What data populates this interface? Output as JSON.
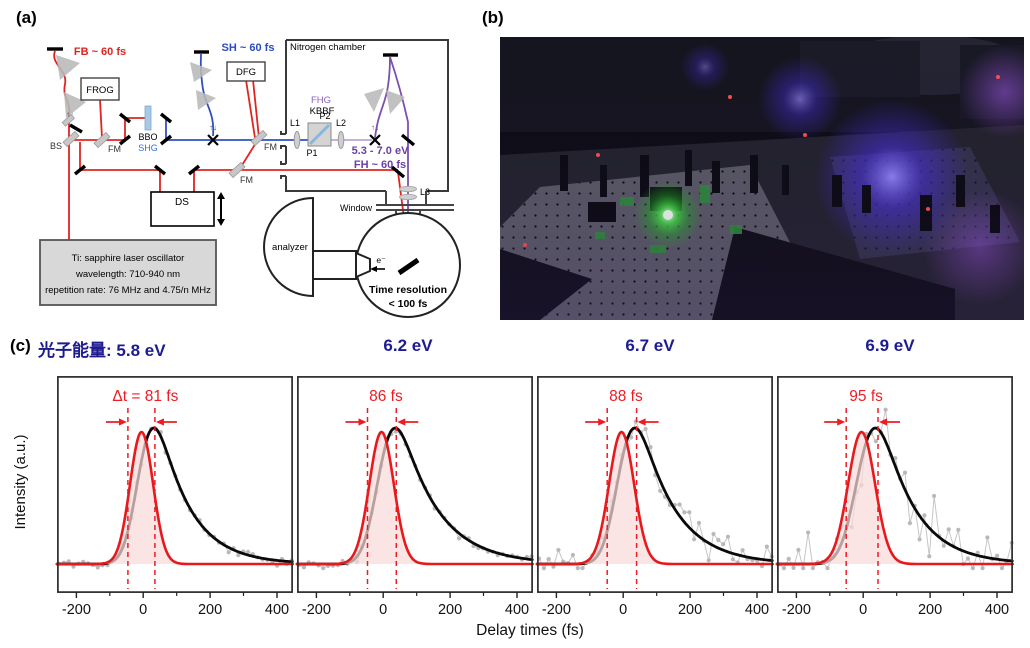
{
  "figure": {
    "panel_a_label": "(a)",
    "panel_b_label": "(b)",
    "panel_c_label": "(c)"
  },
  "diagram": {
    "fb_pulse": "FB ~ 60 fs",
    "frog": "FROG",
    "bs": "BS",
    "fm": "FM",
    "bbo": "BBO",
    "shg": "SHG",
    "sh_pulse": "SH ~ 60 fs",
    "dfg": "DFG",
    "nitrogen_chamber": "Nitrogen chamber",
    "fhg": "FHG",
    "kbbf": "KBBF",
    "l1": "L1",
    "p1": "P1",
    "p2": "P2",
    "l2": "L2",
    "l3": "L3",
    "fh_energy": "5.3 - 7.0 eV",
    "fh_pulse": "FH ~ 60 fs",
    "ds": "DS",
    "flip_arrows": "↑↓",
    "osc1": "Ti: sapphire laser oscillator",
    "osc2": "wavelength: 710-940 nm",
    "osc3": "repetition rate: 76 MHz and 4.75/n MHz",
    "analyzer": "analyzer",
    "window": "Window",
    "electron": "e⁻",
    "time_res1": "Time resolution",
    "time_res2": "< 100 fs",
    "colors": {
      "fundamental_beam": "#e02421",
      "second_harmonic_beam": "#3050c0",
      "fourth_harmonic_beam": "#7a50b0"
    }
  },
  "panel_c": {
    "photon_energy_label": "光子能量: ",
    "ylabel": "Intensity (a.u.)",
    "xlabel": "Delay times (fs)"
  },
  "chart_data": {
    "type": "line",
    "title": "Cross-correlation time resolution at four photon energies",
    "xlabel": "Delay times (fs)",
    "ylabel": "Intensity (a.u.)",
    "x_range": [
      -258,
      448
    ],
    "x_ticks": [
      -200,
      0,
      200,
      400
    ],
    "x_minor_ticks": [
      -100,
      100,
      300
    ],
    "grid": false,
    "legend": "none",
    "annotation_color": "#ed1c24",
    "panels": [
      {
        "photon_energy": "5.8 eV",
        "annotation": "Δt = 81 fs",
        "delta_t_fs": 81,
        "irf": {
          "center_fs": -5,
          "fwhm_fs": 81,
          "color": "#e8191c",
          "fill": "rgba(250,218,218,0.72)"
        },
        "response": {
          "mu_fs": -10,
          "sigma_fs": 36,
          "tau_fs": 95,
          "peak_fs": 38,
          "color": "#0a0a0a"
        },
        "data": {
          "noise": 0.022,
          "seed": 11,
          "color": "#b9b9b9"
        },
        "dashed_lines_fs": [
          -46,
          35
        ]
      },
      {
        "photon_energy": "6.2 eV",
        "annotation": "86 fs",
        "delta_t_fs": 86,
        "irf": {
          "center_fs": -5,
          "fwhm_fs": 86,
          "color": "#e8191c",
          "fill": "rgba(250,218,218,0.72)"
        },
        "response": {
          "mu_fs": -10,
          "sigma_fs": 38,
          "tau_fs": 112,
          "peak_fs": 42,
          "color": "#0a0a0a"
        },
        "data": {
          "noise": 0.02,
          "seed": 22,
          "color": "#b9b9b9"
        },
        "dashed_lines_fs": [
          -47,
          39
        ]
      },
      {
        "photon_energy": "6.7 eV",
        "annotation": "88 fs",
        "delta_t_fs": 88,
        "irf": {
          "center_fs": -5,
          "fwhm_fs": 88,
          "color": "#e8191c",
          "fill": "rgba(250,218,218,0.72)"
        },
        "response": {
          "mu_fs": -10,
          "sigma_fs": 38,
          "tau_fs": 105,
          "peak_fs": 40,
          "color": "#0a0a0a"
        },
        "data": {
          "noise": 0.062,
          "seed": 33,
          "color": "#b9b9b9"
        },
        "dashed_lines_fs": [
          -48,
          40
        ]
      },
      {
        "photon_energy": "6.9 eV",
        "annotation": "95 fs",
        "delta_t_fs": 95,
        "irf": {
          "center_fs": -5,
          "fwhm_fs": 95,
          "color": "#e8191c",
          "fill": "rgba(250,218,218,0.72)"
        },
        "response": {
          "mu_fs": -10,
          "sigma_fs": 42,
          "tau_fs": 100,
          "peak_fs": 40,
          "color": "#0a0a0a"
        },
        "data": {
          "noise": 0.13,
          "seed": 44,
          "color": "#b9b9b9"
        },
        "dashed_lines_fs": [
          -51,
          44
        ]
      }
    ]
  }
}
